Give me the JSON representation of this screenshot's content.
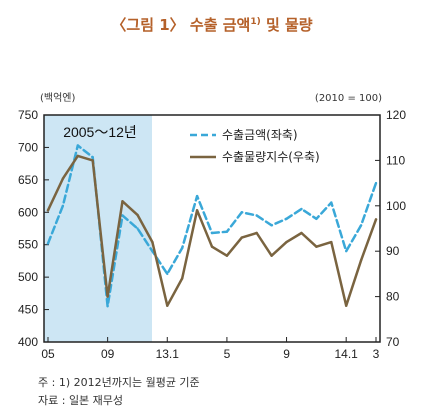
{
  "chart_data": {
    "type": "line",
    "title": "〈그림 1〉 수출 금액",
    "title_sup": "1)",
    "title_suffix": " 및 물량",
    "left_unit": "(백억엔)",
    "right_unit": "(2010 = 100)",
    "shaded_label": "2005～12년",
    "x_tick_labels": [
      "05",
      "09",
      "13.1",
      "5",
      "9",
      "14.1",
      "3"
    ],
    "y_left": {
      "min": 400,
      "max": 750,
      "ticks": [
        400,
        450,
        500,
        550,
        600,
        650,
        700,
        750
      ]
    },
    "y_right": {
      "min": 70,
      "max": 120,
      "ticks": [
        70,
        80,
        90,
        100,
        110,
        120
      ]
    },
    "legend_position": "top-right",
    "series": [
      {
        "name": "수출금액(좌축)",
        "axis": "left",
        "style": "dashed",
        "color": "#3aa8d8",
        "values": [
          552,
          610,
          703,
          685,
          455,
          595,
          575,
          540,
          505,
          545,
          625,
          568,
          570,
          600,
          595,
          580,
          590,
          605,
          590,
          615,
          540,
          580,
          645
        ]
      },
      {
        "name": "수출물량지수(우축)",
        "axis": "right",
        "style": "solid",
        "color": "#7a6440",
        "values": [
          99,
          106,
          111,
          110,
          80,
          101,
          98,
          92,
          78,
          84,
          99,
          91,
          89,
          93,
          94,
          89,
          92,
          94,
          91,
          92,
          78,
          88,
          97
        ]
      }
    ]
  },
  "notes": {
    "footnote": "주 : 1) 2012년까지는 월평균 기준",
    "source": "자료 : 일본 재무성"
  }
}
